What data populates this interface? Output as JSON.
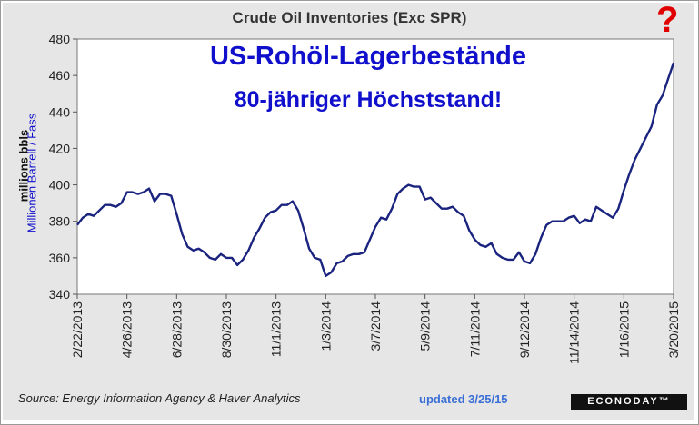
{
  "chart_data": {
    "type": "line",
    "title": "Crude Oil Inventories (Exc SPR)",
    "ylabel": "millions bbls",
    "ylim": [
      340,
      480
    ],
    "yticks": [
      340,
      360,
      380,
      400,
      420,
      440,
      460,
      480
    ],
    "x_start": "2/22/2013",
    "x_end": "3/20/2015",
    "xticks": [
      "2/22/2013",
      "4/26/2013",
      "6/28/2013",
      "8/30/2013",
      "11/1/2013",
      "1/3/2014",
      "3/7/2014",
      "5/9/2014",
      "7/11/2014",
      "9/12/2014",
      "11/14/2014",
      "1/16/2015",
      "3/20/2015"
    ],
    "x": [
      "2013-02-22",
      "2013-03-01",
      "2013-03-08",
      "2013-03-15",
      "2013-03-22",
      "2013-03-29",
      "2013-04-05",
      "2013-04-12",
      "2013-04-19",
      "2013-04-26",
      "2013-05-03",
      "2013-05-10",
      "2013-05-17",
      "2013-05-24",
      "2013-05-31",
      "2013-06-07",
      "2013-06-14",
      "2013-06-21",
      "2013-06-28",
      "2013-07-05",
      "2013-07-12",
      "2013-07-19",
      "2013-07-26",
      "2013-08-02",
      "2013-08-09",
      "2013-08-16",
      "2013-08-23",
      "2013-08-30",
      "2013-09-06",
      "2013-09-13",
      "2013-09-20",
      "2013-09-27",
      "2013-10-04",
      "2013-10-11",
      "2013-10-18",
      "2013-10-25",
      "2013-11-01",
      "2013-11-08",
      "2013-11-15",
      "2013-11-22",
      "2013-11-29",
      "2013-12-06",
      "2013-12-13",
      "2013-12-20",
      "2013-12-27",
      "2014-01-03",
      "2014-01-10",
      "2014-01-17",
      "2014-01-24",
      "2014-01-31",
      "2014-02-07",
      "2014-02-14",
      "2014-02-21",
      "2014-02-28",
      "2014-03-07",
      "2014-03-14",
      "2014-03-21",
      "2014-03-28",
      "2014-04-04",
      "2014-04-11",
      "2014-04-18",
      "2014-04-25",
      "2014-05-02",
      "2014-05-09",
      "2014-05-16",
      "2014-05-23",
      "2014-05-30",
      "2014-06-06",
      "2014-06-13",
      "2014-06-20",
      "2014-06-27",
      "2014-07-04",
      "2014-07-11",
      "2014-07-18",
      "2014-07-25",
      "2014-08-01",
      "2014-08-08",
      "2014-08-15",
      "2014-08-22",
      "2014-08-29",
      "2014-09-05",
      "2014-09-12",
      "2014-09-19",
      "2014-09-26",
      "2014-10-03",
      "2014-10-10",
      "2014-10-17",
      "2014-10-24",
      "2014-10-31",
      "2014-11-07",
      "2014-11-14",
      "2014-11-21",
      "2014-11-28",
      "2014-12-05",
      "2014-12-12",
      "2014-12-19",
      "2014-12-26",
      "2015-01-02",
      "2015-01-09",
      "2015-01-16",
      "2015-01-23",
      "2015-01-30",
      "2015-02-06",
      "2015-02-13",
      "2015-02-20",
      "2015-02-27",
      "2015-03-06",
      "2015-03-13",
      "2015-03-20"
    ],
    "series": [
      {
        "color": "#1a237e",
        "values": [
          378,
          382,
          384,
          383,
          386,
          389,
          389,
          388,
          390,
          396,
          396,
          395,
          396,
          398,
          391,
          395,
          395,
          394,
          384,
          373,
          366,
          364,
          365,
          363,
          360,
          359,
          362,
          360,
          360,
          356,
          359,
          364,
          371,
          376,
          382,
          385,
          386,
          389,
          389,
          391,
          386,
          376,
          365,
          360,
          359,
          350,
          352,
          357,
          358,
          361,
          362,
          362,
          363,
          370,
          377,
          382,
          381,
          387,
          395,
          398,
          400,
          399,
          399,
          392,
          393,
          390,
          387,
          387,
          388,
          385,
          383,
          375,
          370,
          367,
          366,
          368,
          362,
          360,
          359,
          359,
          363,
          358,
          357,
          362,
          371,
          378,
          380,
          380,
          380,
          382,
          383,
          379,
          381,
          380,
          388,
          386,
          384,
          382,
          387,
          397,
          406,
          414,
          420,
          426,
          432,
          444,
          449,
          458,
          467
        ]
      }
    ],
    "annotations": [
      "US-Rohöl-Lagerbestände",
      "80-jähriger Höchststand!",
      "?",
      "Millionen Barrell / Fass"
    ],
    "grid": false,
    "legend": "none"
  },
  "footer": {
    "source": "Source: Energy Information Agency & Haver Analytics",
    "updated": "updated 3/25/15",
    "logo": "ECONODAY™"
  },
  "colors": {
    "line": "#1a237e",
    "overlay_text": "#1010cc",
    "question_mark": "#e00000",
    "background": "#e6e6e6",
    "plot_background": "#ffffff"
  }
}
